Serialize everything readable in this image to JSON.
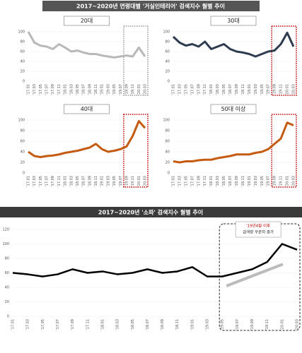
{
  "section_titles": [
    "2017~2020년 연령대별 '거실인테리어' 검색지수 월별 추이",
    "2017~2020년 '소파' 검색지수 월별 추이"
  ],
  "chart_data": [
    {
      "type": "line",
      "title": "20대",
      "color": "#b8b8b8",
      "ylim": [
        0,
        100
      ],
      "yticks": [
        0,
        20,
        40,
        60,
        80,
        100
      ],
      "categories": [
        "'17.01",
        "'17.03",
        "'17.05",
        "'17.07",
        "'17.09",
        "'17.11",
        "'18.01",
        "'18.03",
        "'18.05",
        "'18.07",
        "'18.09",
        "'18.11",
        "'19.01",
        "'19.03",
        "'19.05",
        "'19.07",
        "'19.09",
        "'19.11",
        "'20.01",
        "'20.03"
      ],
      "values": [
        100,
        78,
        72,
        70,
        65,
        75,
        68,
        60,
        62,
        58,
        55,
        55,
        52,
        50,
        48,
        50,
        52,
        50,
        68,
        50
      ]
    },
    {
      "type": "line",
      "title": "30대",
      "color": "#2e3a4e",
      "ylim": [
        0,
        100
      ],
      "yticks": [
        0,
        20,
        40,
        60,
        80,
        100
      ],
      "categories": [
        "'17.01",
        "'17.03",
        "'17.05",
        "'17.07",
        "'17.09",
        "'17.11",
        "'18.01",
        "'18.03",
        "'18.05",
        "'18.07",
        "'18.09",
        "'18.11",
        "'19.01",
        "'19.03",
        "'19.05",
        "'19.07",
        "'19.09",
        "'19.11",
        "'20.01",
        "'20.03"
      ],
      "values": [
        90,
        78,
        72,
        75,
        70,
        80,
        65,
        70,
        75,
        65,
        60,
        58,
        55,
        50,
        55,
        60,
        62,
        75,
        98,
        70
      ]
    },
    {
      "type": "line",
      "title": "40대",
      "color": "#c55a11",
      "ylim": [
        0,
        100
      ],
      "yticks": [
        0,
        20,
        40,
        60,
        80,
        100
      ],
      "categories": [
        "'17.01",
        "'17.03",
        "'17.05",
        "'17.07",
        "'17.09",
        "'17.11",
        "'18.01",
        "'18.03",
        "'18.05",
        "'18.07",
        "'18.09",
        "'18.11",
        "'19.01",
        "'19.03",
        "'19.05",
        "'19.07",
        "'19.09",
        "'19.11",
        "'20.01",
        "'20.03"
      ],
      "values": [
        40,
        32,
        30,
        32,
        33,
        35,
        38,
        40,
        42,
        45,
        48,
        55,
        45,
        40,
        42,
        45,
        50,
        70,
        98,
        85
      ]
    },
    {
      "type": "line",
      "title": "50대 이상",
      "color": "#c55a11",
      "ylim": [
        0,
        100
      ],
      "yticks": [
        0,
        20,
        40,
        60,
        80,
        100
      ],
      "categories": [
        "'17.01",
        "'17.03",
        "'17.05",
        "'17.07",
        "'17.09",
        "'17.11",
        "'18.01",
        "'18.03",
        "'18.05",
        "'18.07",
        "'18.09",
        "'18.11",
        "'19.01",
        "'19.03",
        "'19.05",
        "'19.07",
        "'19.09",
        "'19.11",
        "'20.01",
        "'20.03"
      ],
      "values": [
        22,
        20,
        22,
        22,
        24,
        25,
        25,
        28,
        30,
        32,
        35,
        35,
        35,
        38,
        40,
        45,
        55,
        65,
        95,
        90
      ]
    },
    {
      "type": "line",
      "color": "#000000",
      "ylim": [
        0,
        120
      ],
      "yticks": [
        0,
        20,
        40,
        60,
        80,
        100,
        120
      ],
      "annotation": [
        "'19년4월 이후",
        "검색량 꾸준히 증가"
      ],
      "categories": [
        "'17.01",
        "'17.03",
        "'17.05",
        "'17.07",
        "'17.09",
        "'17.11",
        "'18.01",
        "'18.03",
        "'18.05",
        "'18.07",
        "'18.09",
        "'18.11",
        "'19.01",
        "'19.03",
        "'19.05",
        "'19.07",
        "'19.09",
        "'19.11",
        "'20.01",
        "'20.03"
      ],
      "values": [
        60,
        58,
        55,
        58,
        65,
        60,
        62,
        58,
        60,
        65,
        60,
        62,
        68,
        55,
        55,
        60,
        65,
        75,
        100,
        92
      ]
    }
  ]
}
